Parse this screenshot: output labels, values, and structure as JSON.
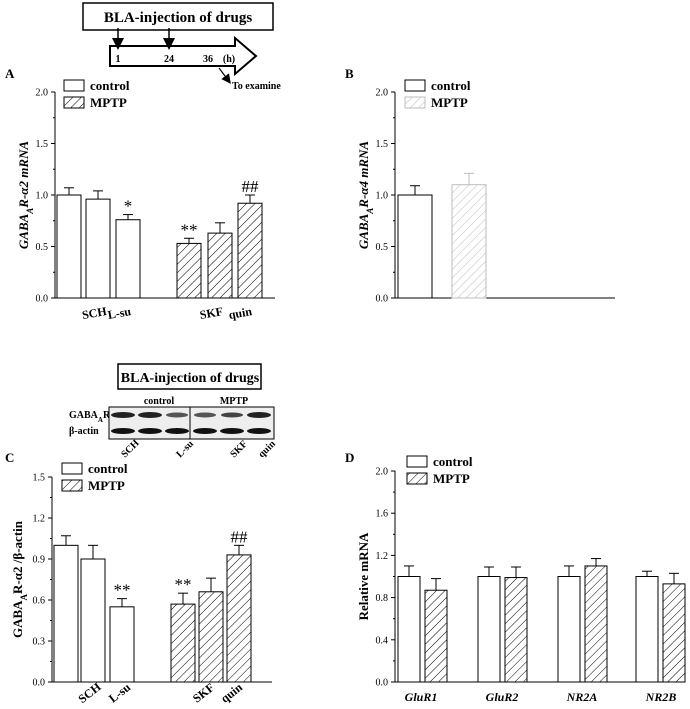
{
  "timeline": {
    "title": "BLA-injection of drugs",
    "ticks": [
      "1",
      "24",
      "36"
    ],
    "unit": "(h)",
    "note": "To examine"
  },
  "western": {
    "title": "BLA-injection of drugs",
    "group_labels": [
      "control",
      "MPTP"
    ],
    "row_labels": [
      "GABA",
      "A",
      "R α2",
      "β-actin"
    ],
    "lane_labels": [
      "SCH",
      "L-su",
      "SKF",
      "quin"
    ]
  },
  "colors": {
    "ink": "#000000",
    "hatch_light": "#bdbdbd"
  },
  "chart_data": [
    {
      "panel": "A",
      "type": "bar",
      "ylabel_parts": [
        "GABA",
        "A",
        "R-α2  mRNA"
      ],
      "ylim": [
        0,
        2.0
      ],
      "yticks": [
        "0.0",
        "0.5",
        "1.0",
        "1.5",
        "2.0"
      ],
      "legend": [
        "control",
        "MPTP"
      ],
      "xlabels": [
        "SCH",
        "L-su",
        "SKF",
        "quin"
      ],
      "bars": [
        {
          "group": "control",
          "value": 1.0,
          "err": 0.07,
          "mark": ""
        },
        {
          "group": "control",
          "value": 0.96,
          "err": 0.08,
          "mark": ""
        },
        {
          "group": "control",
          "value": 0.76,
          "err": 0.05,
          "mark": "*"
        },
        {
          "group": "MPTP",
          "value": 0.53,
          "err": 0.05,
          "mark": "**"
        },
        {
          "group": "MPTP",
          "value": 0.63,
          "err": 0.1,
          "mark": ""
        },
        {
          "group": "MPTP",
          "value": 0.92,
          "err": 0.08,
          "mark": "##"
        }
      ]
    },
    {
      "panel": "B",
      "type": "bar",
      "ylabel_parts": [
        "GABA",
        "A",
        "R-α4  mRNA"
      ],
      "ylim": [
        0,
        2.0
      ],
      "yticks": [
        "0.0",
        "0.5",
        "1.0",
        "1.5",
        "2.0"
      ],
      "legend": [
        "control",
        "MPTP"
      ],
      "xlabels": [],
      "bars": [
        {
          "group": "control",
          "value": 1.0,
          "err": 0.09,
          "mark": ""
        },
        {
          "group": "MPTP",
          "value": 1.1,
          "err": 0.11,
          "mark": ""
        }
      ]
    },
    {
      "panel": "C",
      "type": "bar",
      "ylabel_parts": [
        "GABA",
        "A",
        "R-α2 /β-actin"
      ],
      "ylim": [
        0,
        1.5
      ],
      "yticks": [
        "0.0",
        "0.3",
        "0.6",
        "0.9",
        "1.2",
        "1.5"
      ],
      "legend": [
        "control",
        "MPTP"
      ],
      "xlabels": [
        "SCH",
        "L-su",
        "SKF",
        "quin"
      ],
      "bars": [
        {
          "group": "control",
          "value": 1.0,
          "err": 0.07,
          "mark": ""
        },
        {
          "group": "control",
          "value": 0.9,
          "err": 0.1,
          "mark": ""
        },
        {
          "group": "control",
          "value": 0.55,
          "err": 0.06,
          "mark": "**"
        },
        {
          "group": "MPTP",
          "value": 0.57,
          "err": 0.08,
          "mark": "**"
        },
        {
          "group": "MPTP",
          "value": 0.66,
          "err": 0.1,
          "mark": ""
        },
        {
          "group": "MPTP",
          "value": 0.93,
          "err": 0.07,
          "mark": "##"
        }
      ]
    },
    {
      "panel": "D",
      "type": "bar",
      "ylabel_parts": [
        "Relative mRNA"
      ],
      "ylim": [
        0,
        2.0
      ],
      "yticks": [
        "0.0",
        "0.4",
        "0.8",
        "1.2",
        "1.6",
        "2.0"
      ],
      "legend": [
        "control",
        "MPTP"
      ],
      "xlabels": [
        "GluR1",
        "GluR2",
        "NR2A",
        "NR2B"
      ],
      "bars": [
        {
          "group": "control",
          "value": 1.0,
          "err": 0.1,
          "mark": ""
        },
        {
          "group": "MPTP",
          "value": 0.87,
          "err": 0.11,
          "mark": ""
        },
        {
          "group": "control",
          "value": 1.0,
          "err": 0.09,
          "mark": ""
        },
        {
          "group": "MPTP",
          "value": 0.99,
          "err": 0.1,
          "mark": ""
        },
        {
          "group": "control",
          "value": 1.0,
          "err": 0.1,
          "mark": ""
        },
        {
          "group": "MPTP",
          "value": 1.1,
          "err": 0.07,
          "mark": ""
        },
        {
          "group": "control",
          "value": 1.0,
          "err": 0.05,
          "mark": ""
        },
        {
          "group": "MPTP",
          "value": 0.93,
          "err": 0.1,
          "mark": ""
        }
      ]
    }
  ]
}
